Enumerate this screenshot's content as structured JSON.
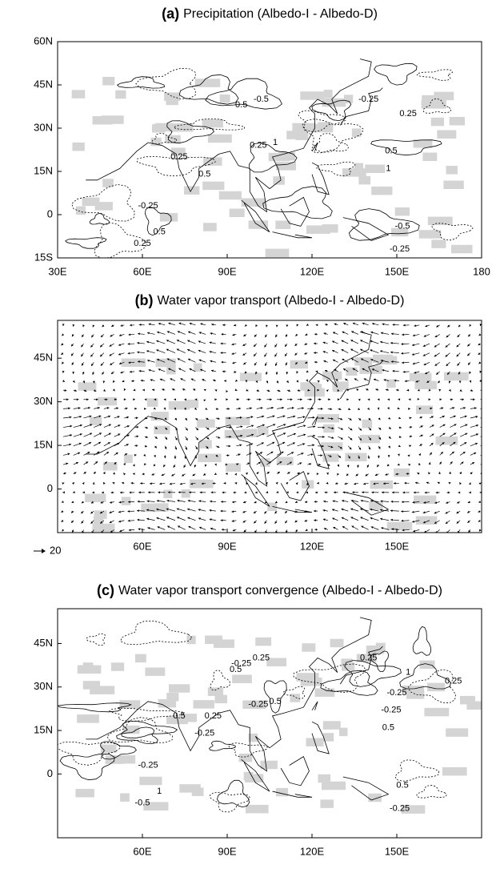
{
  "panels": [
    {
      "label": "(a)",
      "title": "Precipitation (Albedo-I - Albedo-D)",
      "xlim": [
        30,
        180
      ],
      "ylim": [
        -15,
        60
      ],
      "xticks": [
        {
          "value": 30,
          "label": "30E"
        },
        {
          "value": 60,
          "label": "60E"
        },
        {
          "value": 90,
          "label": "90E"
        },
        {
          "value": 120,
          "label": "120E"
        },
        {
          "value": 150,
          "label": "150E"
        },
        180
      ],
      "yticks": [
        {
          "value": 60,
          "label": "60N"
        },
        {
          "value": 45,
          "label": "45N"
        },
        {
          "value": 30,
          "label": "30N"
        },
        {
          "value": 15,
          "label": "15N"
        },
        0,
        {
          "value": -15,
          "label": "15S"
        }
      ],
      "contour_labels": [
        "-0.25",
        "0.5",
        "-0.5",
        "0.25",
        "1",
        "0.5",
        "0.25",
        "-0.25",
        "0.25",
        "0.5",
        "1",
        "0.5",
        "-0.25",
        "0.25",
        "-0.5"
      ]
    },
    {
      "label": "(b)",
      "title": "Water vapor transport (Albedo-I - Albedo-D)",
      "xlim": [
        30,
        180
      ],
      "ylim": [
        -15,
        58
      ],
      "xticks": [
        {
          "value": 60,
          "label": "60E"
        },
        {
          "value": 90,
          "label": "90E"
        },
        {
          "value": 120,
          "label": "120E"
        },
        {
          "value": 150,
          "label": "150E"
        }
      ],
      "yticks": [
        {
          "value": 45,
          "label": "45N"
        },
        {
          "value": 30,
          "label": "30N"
        },
        {
          "value": 15,
          "label": "15N"
        },
        0
      ],
      "reference_vector": 20
    },
    {
      "label": "(c)",
      "title": "Water vapor transport convergence (Albedo-I - Albedo-D)",
      "xlim": [
        30,
        180
      ],
      "ylim": [
        -22,
        57
      ],
      "xticks": [
        {
          "value": 60,
          "label": "60E"
        },
        {
          "value": 90,
          "label": "90E"
        },
        {
          "value": 120,
          "label": "120E"
        },
        {
          "value": 150,
          "label": "150E"
        }
      ],
      "yticks": [
        {
          "value": 45,
          "label": "45N"
        },
        {
          "value": 30,
          "label": "30N"
        },
        {
          "value": 15,
          "label": "15N"
        },
        0
      ],
      "contour_labels": [
        "-0.25",
        "-0.25",
        "0.25",
        "-0.25",
        "0.5",
        "-0.25",
        "0.5",
        "0.25",
        "1",
        "-0.25",
        "0.5",
        "1",
        "-0.25",
        "-0.5",
        "0.5",
        "0.25",
        "-0.25",
        "0.5",
        "0.25"
      ]
    }
  ]
}
